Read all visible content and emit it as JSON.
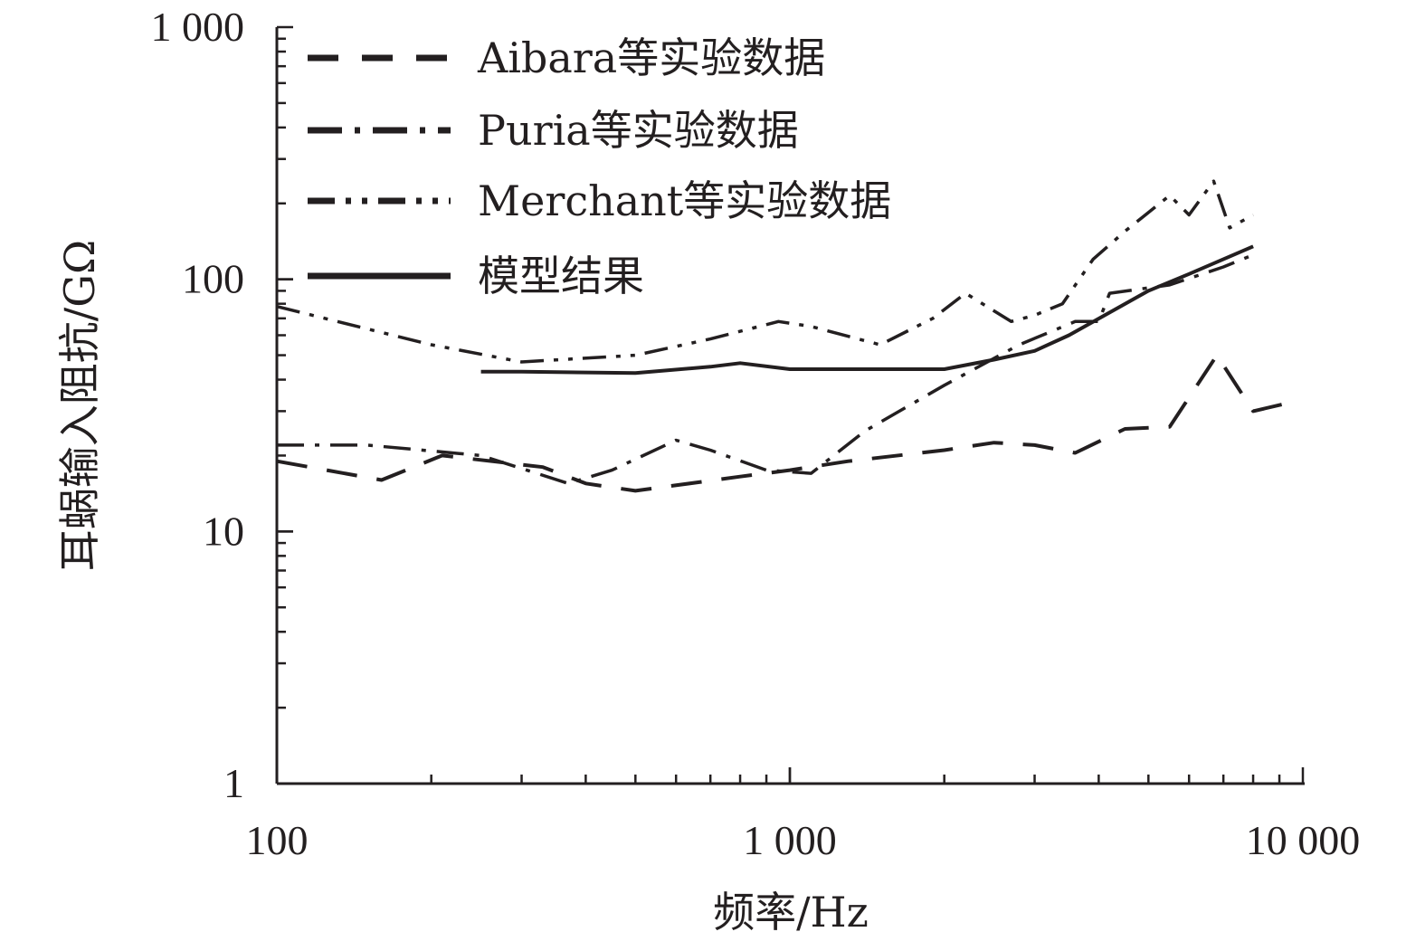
{
  "chart_data": {
    "type": "line",
    "xscale": "log",
    "yscale": "log",
    "xlim": [
      100,
      10000
    ],
    "ylim": [
      1,
      1000
    ],
    "xlabel": "频率/Hz",
    "ylabel": "耳蜗输入阻抗/GΩ",
    "x_tick_labels": [
      "100",
      "1 000",
      "10 000"
    ],
    "y_tick_labels": [
      "1",
      "10",
      "100",
      "1 000"
    ],
    "grid": false,
    "legend_position": "top-left",
    "series": [
      {
        "name": "Aibara等实验数据",
        "style": "dashed",
        "x": [
          100,
          160,
          210,
          330,
          400,
          500,
          800,
          1000,
          1300,
          2000,
          2500,
          3000,
          3600,
          4500,
          5500,
          6800,
          8000,
          9800
        ],
        "y": [
          19,
          16,
          20,
          18,
          15.5,
          14.5,
          16.5,
          17.5,
          19,
          21,
          22.5,
          22,
          20.5,
          25.5,
          26,
          50,
          30,
          33
        ]
      },
      {
        "name": "Puria等实验数据",
        "style": "dash-dot",
        "x": [
          100,
          150,
          250,
          370,
          450,
          600,
          700,
          900,
          1100,
          1400,
          2000,
          2800,
          3600,
          4000,
          4200,
          5500,
          7000,
          8000
        ],
        "y": [
          22,
          22,
          20,
          15.5,
          17.5,
          23,
          21,
          17.5,
          17,
          25,
          38,
          55,
          68,
          68,
          88,
          95,
          112,
          125
        ]
      },
      {
        "name": "Merchant等实验数据",
        "style": "dash-dot-dot",
        "x": [
          100,
          200,
          300,
          500,
          700,
          950,
          1100,
          1500,
          1900,
          2200,
          2700,
          3000,
          3400,
          3900,
          4500,
          5500,
          6000,
          6700,
          7200,
          8000
        ],
        "y": [
          78,
          55,
          47,
          50,
          58,
          68,
          65,
          55,
          70,
          88,
          68,
          72,
          80,
          120,
          155,
          215,
          180,
          245,
          160,
          180
        ]
      },
      {
        "name": "模型结果",
        "style": "solid",
        "x": [
          250,
          300,
          500,
          700,
          800,
          1000,
          1500,
          2000,
          2500,
          3000,
          3500,
          5000,
          6000,
          8000
        ],
        "y": [
          43,
          43,
          42.5,
          45,
          46.5,
          44,
          44,
          44,
          48,
          52,
          60,
          90,
          105,
          135
        ]
      }
    ]
  }
}
